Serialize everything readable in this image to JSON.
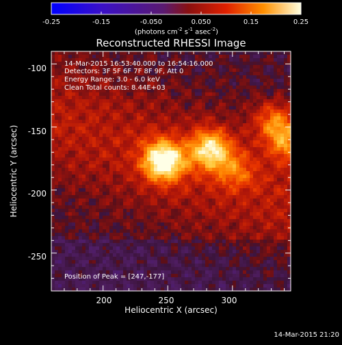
{
  "colorbar": {
    "ticks": [
      "-0.25",
      "-0.15",
      "-0.050",
      "0.050",
      "0.15",
      "0.25"
    ],
    "unit_text": "(photons cm",
    "unit_sup1": "-2",
    "unit_mid": " s",
    "unit_sup2": "-1",
    "unit_mid2": " asec",
    "unit_sup3": "-2",
    "unit_end": ")",
    "range": [
      -0.25,
      0.25
    ]
  },
  "chart_data": {
    "type": "heatmap",
    "title": "Reconstructed RHESSI Image",
    "xlabel": "Heliocentric X (arcsec)",
    "ylabel": "Heliocentric Y (arcsec)",
    "xlim": [
      160,
      345
    ],
    "ylim": [
      -280,
      -90
    ],
    "x_ticks": [
      "200",
      "250",
      "300"
    ],
    "y_ticks": [
      "-100",
      "-150",
      "-200",
      "-250"
    ],
    "colormap": "hot-with-blue-negatives",
    "sources": [
      {
        "x": 247,
        "y": -177,
        "peak": 0.25
      },
      {
        "x": 283,
        "y": -168,
        "peak": 0.19
      },
      {
        "x": 332,
        "y": -145,
        "peak": 0.12
      },
      {
        "x": 343,
        "y": -162,
        "peak": 0.13
      },
      {
        "x": 303,
        "y": -185,
        "peak": 0.08
      }
    ]
  },
  "annotations": {
    "time_range": "14-Mar-2015 16:53:40.000 to 16:54:16.000",
    "detectors": "Detectors: 3F 5F 6F 7F 8F 9F, Att 0",
    "energy": "Energy Range: 3.0 - 6.0 keV",
    "clean": "Clean     Total counts: 8.44E+03",
    "peak_position": "Position of Peak = [247,-177]"
  },
  "footer": {
    "timestamp": "14-Mar-2015 21:20"
  }
}
